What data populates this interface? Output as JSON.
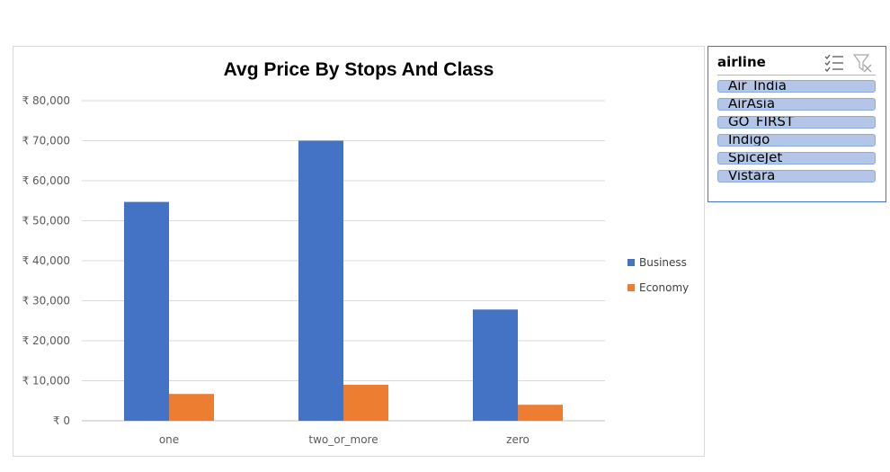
{
  "chart_data": {
    "type": "bar",
    "title": "Avg Price By Stops And Class",
    "xlabel": "",
    "ylabel": "",
    "categories": [
      "one",
      "two_or_more",
      "zero"
    ],
    "series": [
      {
        "name": "Business",
        "color": "#4472c4",
        "values": [
          54700,
          70000,
          27800
        ]
      },
      {
        "name": "Economy",
        "color": "#ed7d31",
        "values": [
          6700,
          9000,
          4000
        ]
      }
    ],
    "ylim": [
      0,
      80000
    ],
    "yticks": [
      0,
      10000,
      20000,
      30000,
      40000,
      50000,
      60000,
      70000,
      80000
    ],
    "ytick_labels": [
      "₹ 0",
      "₹ 10,000",
      "₹ 20,000",
      "₹ 30,000",
      "₹ 40,000",
      "₹ 50,000",
      "₹ 60,000",
      "₹ 70,000",
      "₹ 80,000"
    ],
    "grid": true,
    "legend_position": "right"
  },
  "slicer": {
    "title": "airline",
    "multiselect_icon": "multi-select-icon",
    "clear_filter_icon": "clear-filter-icon",
    "items": [
      {
        "label": "Air_India"
      },
      {
        "label": "AirAsia"
      },
      {
        "label": "GO_FIRST"
      },
      {
        "label": "Indigo"
      },
      {
        "label": "SpiceJet"
      },
      {
        "label": "Vistara"
      }
    ]
  }
}
